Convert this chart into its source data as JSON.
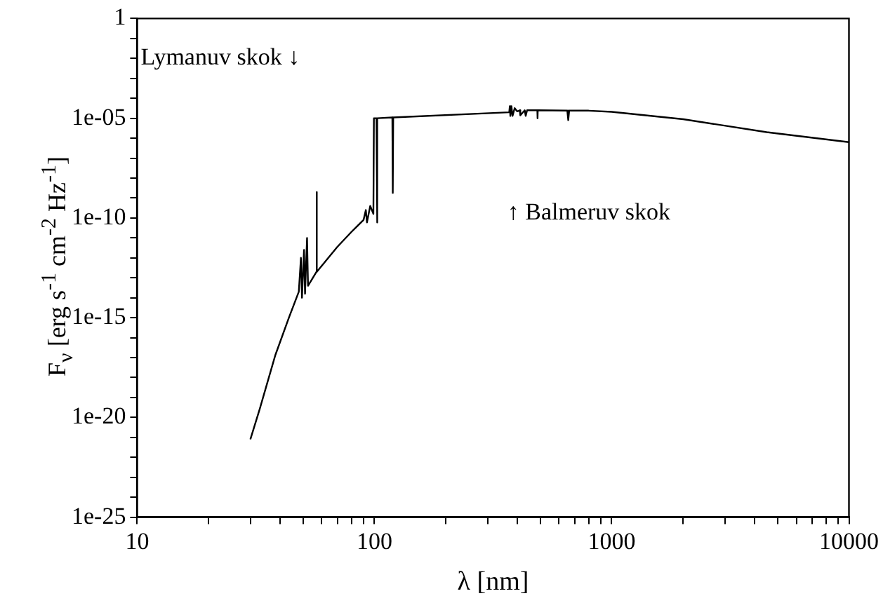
{
  "chart_data": {
    "type": "line",
    "xlabel": "λ [nm]",
    "ylabel": "F$_{ν}$ [erg s$^{-1}$ cm$^{-2}$ Hz$^{-1}$]",
    "log": "xy",
    "grid": false,
    "legend": false,
    "marker": "none",
    "line_style": "solid",
    "xlim": [
      10,
      10000
    ],
    "xticks": [
      10,
      {
        "value": 20,
        "label": null
      },
      {
        "value": 30,
        "label": null
      },
      {
        "value": 40,
        "label": null
      },
      {
        "value": 50,
        "label": null
      },
      {
        "value": 60,
        "label": null
      },
      {
        "value": 70,
        "label": null
      },
      {
        "value": 80,
        "label": null
      },
      {
        "value": 90,
        "label": null
      },
      100,
      {
        "value": 200,
        "label": null
      },
      {
        "value": 300,
        "label": null
      },
      {
        "value": 400,
        "label": null
      },
      {
        "value": 500,
        "label": null
      },
      {
        "value": 600,
        "label": null
      },
      {
        "value": 700,
        "label": null
      },
      {
        "value": 800,
        "label": null
      },
      {
        "value": 900,
        "label": null
      },
      1000,
      {
        "value": 2000,
        "label": null
      },
      {
        "value": 3000,
        "label": null
      },
      {
        "value": 4000,
        "label": null
      },
      {
        "value": 5000,
        "label": null
      },
      {
        "value": 6000,
        "label": null
      },
      {
        "value": 7000,
        "label": null
      },
      {
        "value": 8000,
        "label": null
      },
      {
        "value": 9000,
        "label": null
      },
      10000
    ],
    "ylim": [
      1e-25,
      1
    ],
    "yticks": [
      {
        "value": 1e-25,
        "label": "1e-25"
      },
      {
        "value": 1e-24,
        "label": null
      },
      {
        "value": 1e-23,
        "label": null
      },
      {
        "value": 1e-22,
        "label": null
      },
      {
        "value": 1e-21,
        "label": null
      },
      {
        "value": 1e-20,
        "label": "1e-20"
      },
      {
        "value": 1e-19,
        "label": null
      },
      {
        "value": 1e-18,
        "label": null
      },
      {
        "value": 1e-17,
        "label": null
      },
      {
        "value": 1e-16,
        "label": null
      },
      {
        "value": 1e-15,
        "label": "1e-15"
      },
      {
        "value": 1e-14,
        "label": null
      },
      {
        "value": 1e-13,
        "label": null
      },
      {
        "value": 1e-12,
        "label": null
      },
      {
        "value": 1e-11,
        "label": null
      },
      {
        "value": 1e-10,
        "label": "1e-10"
      },
      {
        "value": 1e-09,
        "label": null
      },
      {
        "value": 1e-08,
        "label": null
      },
      {
        "value": 1e-07,
        "label": null
      },
      {
        "value": 1e-06,
        "label": null
      },
      {
        "value": 1e-05,
        "label": "1e-05"
      },
      {
        "value": 0.0001,
        "label": null
      },
      {
        "value": 0.001,
        "label": null
      },
      {
        "value": 0.01,
        "label": null
      },
      {
        "value": 0.1,
        "label": null
      },
      1
    ],
    "annotations": [
      "Lymanuv skok ↓",
      "↑ Balmeruv skok"
    ],
    "series": [
      {
        "color": "#000000",
        "x": [
          30,
          32.8,
          38.2,
          43.6,
          48,
          49,
          49.5,
          50.5,
          51,
          52,
          52.5,
          57,
          57.1,
          57.2,
          69.7,
          80,
          90,
          92,
          93,
          96,
          99,
          99.5,
          102,
          102.5,
          103,
          119,
          119.5,
          120,
          370,
          372,
          374,
          378,
          382,
          390,
          400,
          410,
          412,
          430,
          434,
          440,
          486,
          487,
          488,
          650,
          656,
          662,
          800,
          1000,
          2000,
          4500,
          10000
        ],
        "values": [
          8e-22,
          2.5e-20,
          1.3e-17,
          1e-15,
          2e-14,
          1e-12,
          1e-14,
          2.5e-12,
          1.6e-14,
          1e-11,
          4e-14,
          2e-13,
          2e-09,
          2e-13,
          3.5e-12,
          2e-11,
          8e-11,
          2.5e-10,
          6e-11,
          4e-10,
          1.6e-10,
          1e-05,
          1e-05,
          6e-11,
          1e-05,
          1.1e-05,
          1.8e-09,
          1.1e-05,
          2e-05,
          4e-05,
          1.3e-05,
          4e-05,
          1.3e-05,
          3.2e-05,
          2.2e-05,
          2.5e-05,
          1.4e-05,
          2.5e-05,
          1.3e-05,
          2.5e-05,
          2.5e-05,
          1e-05,
          2.5e-05,
          2.4e-05,
          8e-06,
          2.4e-05,
          2.4e-05,
          2.1e-05,
          9e-06,
          2e-06,
          6.3e-07
        ]
      }
    ]
  }
}
